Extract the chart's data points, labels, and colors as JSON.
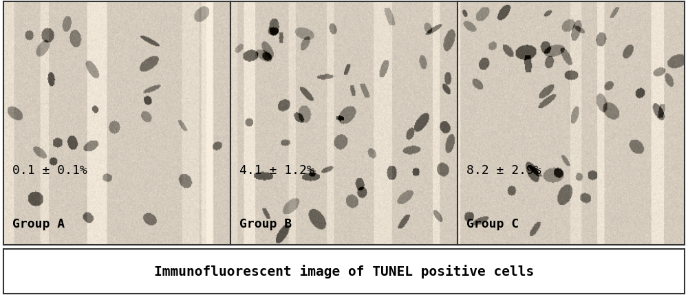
{
  "panels": [
    {
      "label": "Group A",
      "value_text": "0.1 ± 0.1%"
    },
    {
      "label": "Group B",
      "value_text": "4.1 ± 1.2%"
    },
    {
      "label": "Group C",
      "value_text": "8.2 ± 2.9%"
    }
  ],
  "caption": "Immunofluorescent image of TUNEL positive cells",
  "bg_color": "#e8e0d8",
  "border_color": "#333333",
  "caption_bg": "#ffffff",
  "text_color": "#000000",
  "figure_bg": "#ffffff",
  "panel_seeds": [
    42,
    7,
    123
  ],
  "n_cells": [
    28,
    55,
    48
  ],
  "cell_color_dark": "#3a3a3a",
  "cell_color_medium": "#6a6a6a",
  "tissue_bg_light": "#ddd8cc",
  "tissue_bg_mid": "#ccc4b4"
}
